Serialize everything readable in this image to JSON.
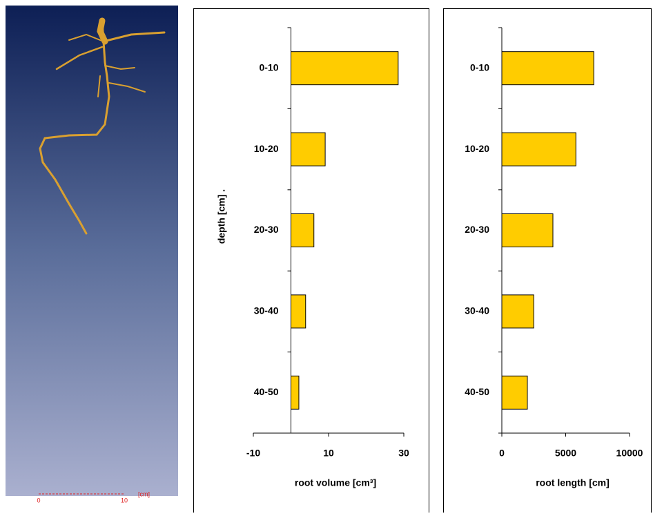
{
  "image_panel": {
    "scale_labels": [
      "0",
      "10",
      "[cm]"
    ]
  },
  "chart_data": [
    {
      "type": "bar",
      "orientation": "horizontal",
      "y_label": "depth [cm] .",
      "x_label": "root volume [cm³]",
      "categories": [
        "0-10",
        "10-20",
        "20-30",
        "30-40",
        "40-50"
      ],
      "values": [
        28.5,
        9.1,
        6.1,
        3.9,
        2.1
      ],
      "color": "#ffcc00",
      "xlim": [
        -10,
        30
      ],
      "xticks": [
        -10,
        10,
        30
      ]
    },
    {
      "type": "bar",
      "orientation": "horizontal",
      "x_label": "root length [cm]",
      "categories": [
        "0-10",
        "10-20",
        "20-30",
        "30-40",
        "40-50"
      ],
      "values": [
        7200,
        5800,
        4000,
        2500,
        2000
      ],
      "color": "#ffcc00",
      "xlim": [
        0,
        10000
      ],
      "xticks": [
        0,
        5000,
        10000
      ]
    }
  ]
}
